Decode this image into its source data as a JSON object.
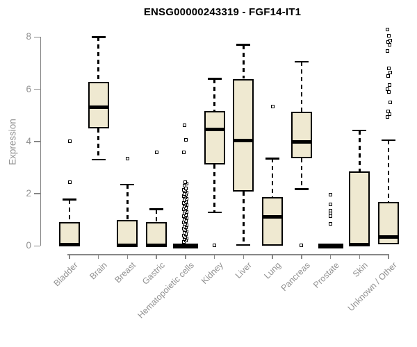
{
  "chart_data": {
    "type": "boxplot",
    "title": "ENSG00000243319 - FGF14-IT1",
    "xlabel": "",
    "ylabel": "Expression",
    "ylim": [
      0,
      8
    ],
    "yticks": [
      0,
      2,
      4,
      6,
      8
    ],
    "grid": false,
    "legend": "none",
    "categories": [
      "Bladder",
      "Brain",
      "Breast",
      "Gastric",
      "Hematopoietic cells",
      "Kidney",
      "Liver",
      "Lung",
      "Pancreas",
      "Prostate",
      "Skin",
      "Unknown / Other"
    ],
    "series": [
      {
        "name": "Bladder",
        "q1": 0,
        "median": 0.05,
        "q3": 0.9,
        "whisker_low": 0,
        "whisker_high": 1.77,
        "outliers": [
          2.43,
          4.02
        ]
      },
      {
        "name": "Brain",
        "q1": 4.5,
        "median": 5.3,
        "q3": 6.28,
        "whisker_low": 3.3,
        "whisker_high": 8.0,
        "outliers": []
      },
      {
        "name": "Breast",
        "q1": 0,
        "median": 0.03,
        "q3": 1.0,
        "whisker_low": 0,
        "whisker_high": 2.35,
        "outliers": [
          3.35
        ]
      },
      {
        "name": "Gastric",
        "q1": 0,
        "median": 0.03,
        "q3": 0.9,
        "whisker_low": 0,
        "whisker_high": 1.4,
        "outliers": [
          3.57
        ]
      },
      {
        "name": "Hematopoietic cells",
        "q1": 0,
        "median": 0,
        "q3": 0,
        "whisker_low": 0,
        "whisker_high": 0,
        "outliers": [
          0.15,
          0.2,
          0.25,
          0.3,
          0.35,
          0.4,
          0.45,
          0.5,
          0.55,
          0.6,
          0.65,
          0.7,
          0.75,
          0.8,
          0.85,
          0.9,
          0.95,
          1.0,
          1.05,
          1.1,
          1.15,
          1.2,
          1.25,
          1.3,
          1.35,
          1.4,
          1.45,
          1.5,
          1.55,
          1.6,
          1.65,
          1.7,
          1.75,
          1.8,
          1.85,
          1.9,
          1.95,
          2.0,
          2.05,
          2.1,
          2.15,
          2.2,
          2.3,
          2.4,
          2.45,
          3.59,
          4.06,
          4.63
        ]
      },
      {
        "name": "Kidney",
        "q1": 3.13,
        "median": 4.47,
        "q3": 5.16,
        "whisker_low": 1.28,
        "whisker_high": 6.4,
        "outliers": [
          0.02
        ]
      },
      {
        "name": "Liver",
        "q1": 2.07,
        "median": 4.03,
        "q3": 6.4,
        "whisker_low": 0.03,
        "whisker_high": 7.7,
        "outliers": []
      },
      {
        "name": "Lung",
        "q1": 0,
        "median": 1.1,
        "q3": 1.87,
        "whisker_low": 0,
        "whisker_high": 3.35,
        "outliers": [
          5.35
        ]
      },
      {
        "name": "Pancreas",
        "q1": 3.37,
        "median": 3.98,
        "q3": 5.15,
        "whisker_low": 2.17,
        "whisker_high": 7.05,
        "outliers": [
          0.02
        ]
      },
      {
        "name": "Prostate",
        "q1": 0,
        "median": 0,
        "q3": 0,
        "whisker_low": 0,
        "whisker_high": 0,
        "outliers": [
          0.85,
          1.15,
          1.25,
          1.35,
          1.6,
          1.95
        ]
      },
      {
        "name": "Skin",
        "q1": 0,
        "median": 0.05,
        "q3": 2.85,
        "whisker_low": 0,
        "whisker_high": 4.42,
        "outliers": []
      },
      {
        "name": "Unknown / Other",
        "q1": 0.05,
        "median": 0.35,
        "q3": 1.68,
        "whisker_low": 0,
        "whisker_high": 4.05,
        "outliers": [
          4.95,
          5.05,
          5.15,
          5.5,
          5.9,
          6.0,
          6.15,
          6.5,
          6.65,
          6.8,
          7.45,
          7.7,
          7.8,
          7.85,
          8.05,
          8.3
        ]
      }
    ],
    "colors": {
      "box_fill": "#EFE9D1",
      "box_border": "#000000",
      "median": "#000000",
      "axis": "#878787",
      "tick_text": "#919191",
      "title_text": "#000000"
    }
  }
}
